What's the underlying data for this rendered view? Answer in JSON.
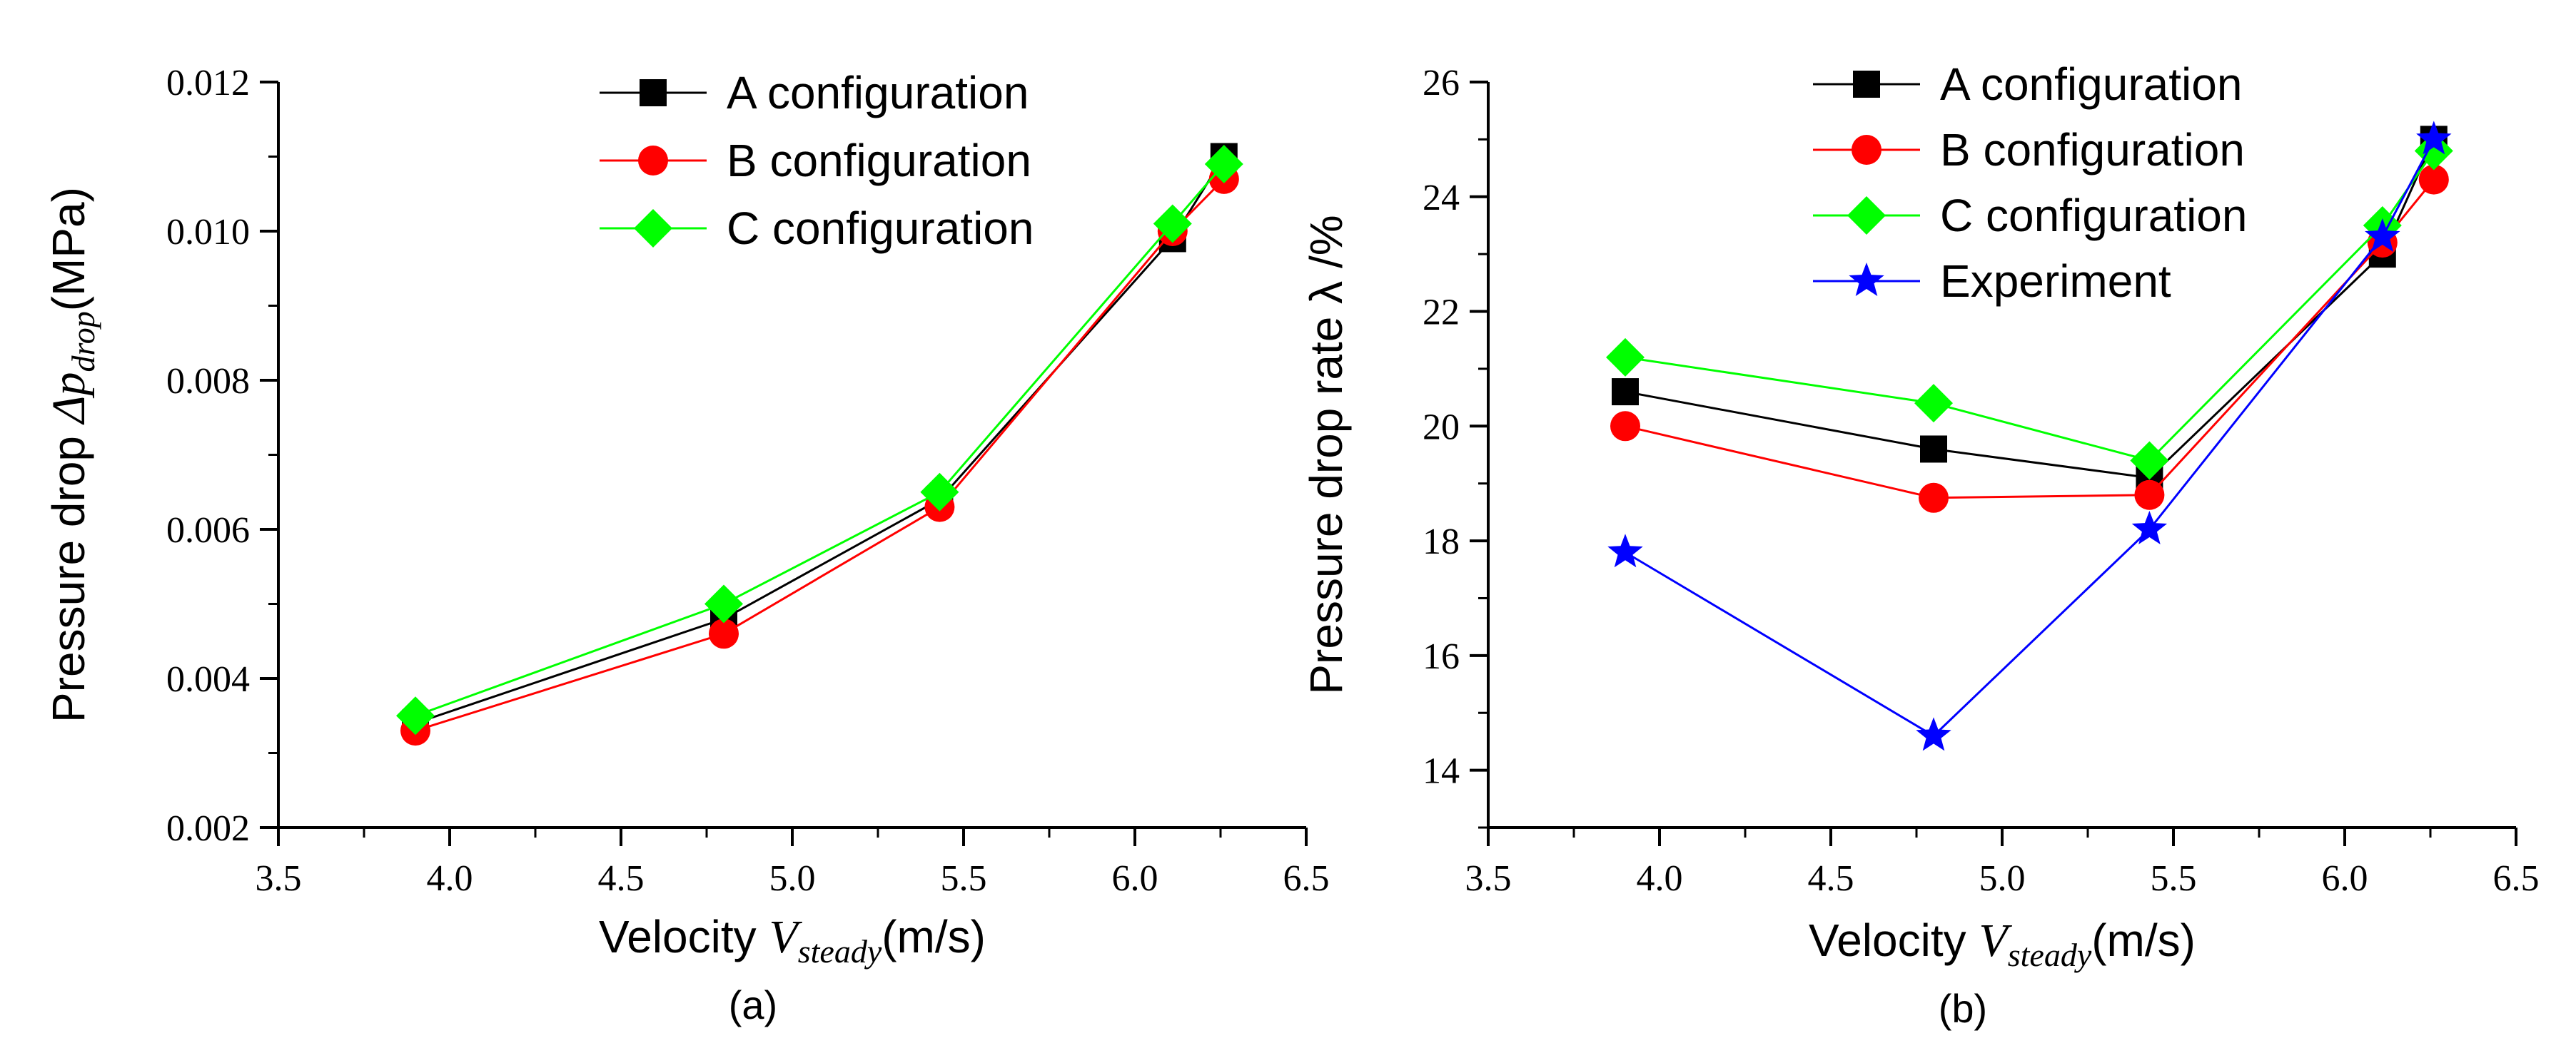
{
  "chart_data": [
    {
      "type": "line",
      "panel_label": "(a)",
      "xlabel": {
        "prefix": "Velocity ",
        "symbol": "V",
        "subscript": "steady",
        "suffix": "(m/s)"
      },
      "ylabel": {
        "prefix": "Pressure drop ",
        "symbol": "Δp",
        "subscript": "drop",
        "suffix": "(MPa)"
      },
      "xlim": [
        3.5,
        6.5
      ],
      "ylim": [
        0.002,
        0.012
      ],
      "xticks": [
        "3.5",
        "4.0",
        "4.5",
        "5.0",
        "5.5",
        "6.0",
        "6.5"
      ],
      "yticks": [
        "0.002",
        "0.004",
        "0.006",
        "0.008",
        "0.010",
        "0.012"
      ],
      "grid": false,
      "legend": "top-center",
      "x": [
        3.9,
        4.8,
        5.43,
        6.11,
        6.26
      ],
      "series": [
        {
          "name": "A configuration",
          "color": "#000000",
          "marker": "square",
          "values": [
            0.0034,
            0.0048,
            0.0064,
            0.0099,
            0.011
          ]
        },
        {
          "name": "B configuration",
          "color": "#ff0000",
          "marker": "circle",
          "values": [
            0.0033,
            0.0046,
            0.0063,
            0.01,
            0.0107
          ]
        },
        {
          "name": "C configuration",
          "color": "#00ff00",
          "marker": "diamond",
          "values": [
            0.0035,
            0.005,
            0.0065,
            0.0101,
            0.0109
          ]
        }
      ]
    },
    {
      "type": "line",
      "panel_label": "(b)",
      "xlabel": {
        "prefix": "Velocity ",
        "symbol": "V",
        "subscript": "steady",
        "suffix": "(m/s)"
      },
      "ylabel": {
        "prefix": "Pressure drop rate λ /%",
        "symbol": "",
        "subscript": "",
        "suffix": ""
      },
      "xlim": [
        3.5,
        6.5
      ],
      "ylim": [
        13,
        26
      ],
      "xticks": [
        "3.5",
        "4.0",
        "4.5",
        "5.0",
        "5.5",
        "6.0",
        "6.5"
      ],
      "yticks": [
        "14",
        "16",
        "18",
        "20",
        "22",
        "24",
        "26"
      ],
      "grid": false,
      "legend": "top-center",
      "x": [
        3.9,
        4.8,
        5.43,
        6.11,
        6.26
      ],
      "series": [
        {
          "name": "A configuration",
          "color": "#000000",
          "marker": "square",
          "values": [
            20.6,
            19.6,
            19.1,
            23.0,
            25.0
          ]
        },
        {
          "name": "B configuration",
          "color": "#ff0000",
          "marker": "circle",
          "values": [
            20.0,
            18.75,
            18.8,
            23.2,
            24.3
          ]
        },
        {
          "name": "C configuration",
          "color": "#00ff00",
          "marker": "diamond",
          "values": [
            21.2,
            20.4,
            19.4,
            23.5,
            24.8
          ]
        },
        {
          "name": "Experiment",
          "color": "#0000ff",
          "marker": "star",
          "values": [
            17.8,
            14.6,
            18.2,
            23.3,
            25.0
          ]
        }
      ]
    }
  ]
}
